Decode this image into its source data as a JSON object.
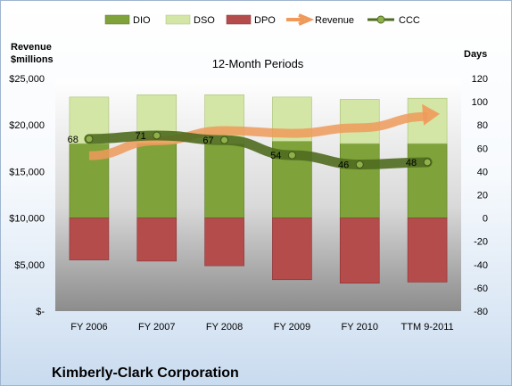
{
  "chart_data": {
    "type": "bar",
    "title": "12-Month Periods",
    "company": "Kimberly-Clark Corporation",
    "categories": [
      "FY 2006",
      "FY 2007",
      "FY 2008",
      "FY 2009",
      "FY 2010",
      "TTM 9-2011"
    ],
    "left_axis": {
      "title_line1": "Revenue",
      "title_line2": "$millions",
      "range": [
        0,
        25000
      ],
      "ticks": [
        {
          "value": 0,
          "label": "$-"
        },
        {
          "value": 5000,
          "label": "$5,000"
        },
        {
          "value": 10000,
          "label": "$10,000"
        },
        {
          "value": 15000,
          "label": "$15,000"
        },
        {
          "value": 20000,
          "label": "$20,000"
        },
        {
          "value": 25000,
          "label": "$25,000"
        }
      ]
    },
    "right_axis": {
      "title": "Days",
      "range": [
        -80,
        120
      ],
      "ticks": [
        -80,
        -60,
        -40,
        -20,
        0,
        20,
        40,
        60,
        80,
        100,
        120
      ]
    },
    "series": [
      {
        "name": "DIO",
        "kind": "bar",
        "axis": "right",
        "color": "#7fa23a",
        "values": [
          64,
          64,
          64,
          66,
          64,
          64
        ]
      },
      {
        "name": "DSO",
        "kind": "bar",
        "axis": "right",
        "color": "#d3e6a6",
        "values": [
          40,
          42,
          42,
          38,
          38,
          39
        ]
      },
      {
        "name": "DPO",
        "kind": "bar",
        "axis": "right",
        "color": "#b44c4c",
        "values": [
          -36,
          -37,
          -41,
          -53,
          -56,
          -55
        ]
      },
      {
        "name": "Revenue",
        "kind": "arrow",
        "axis": "left",
        "color": "#ef9a5a",
        "values": [
          16700,
          18300,
          19400,
          19100,
          19700,
          20900
        ]
      },
      {
        "name": "CCC",
        "kind": "line",
        "axis": "right",
        "color": "#4f6b1f",
        "values": [
          68,
          71,
          67,
          54,
          46,
          48
        ],
        "labels": [
          "68",
          "71",
          "67",
          "54",
          "46",
          "48"
        ]
      }
    ]
  }
}
